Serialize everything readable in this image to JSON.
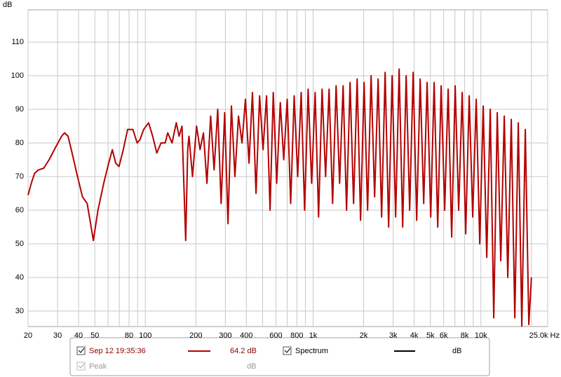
{
  "chart_data": {
    "type": "line",
    "y_label": "dB",
    "xscale": "log",
    "grid": true,
    "xlim": [
      20,
      25000
    ],
    "ylim": [
      25.4,
      119.6
    ],
    "yticks": [
      30,
      40,
      50,
      60,
      70,
      80,
      90,
      100,
      110
    ],
    "xticks": [
      20,
      30,
      40,
      50,
      80,
      100,
      200,
      300,
      400,
      600,
      800,
      {
        "value": 1000,
        "label": "1k"
      },
      {
        "value": 2000,
        "label": "2k"
      },
      {
        "value": 3000,
        "label": "3k"
      },
      {
        "value": 4000,
        "label": "4k"
      },
      {
        "value": 5000,
        "label": "5k"
      },
      {
        "value": 6000,
        "label": "6k"
      },
      {
        "value": 8000,
        "label": "8k"
      },
      {
        "value": 10000,
        "label": "10k"
      },
      {
        "value": 25000,
        "label": "25.0k Hz"
      }
    ],
    "xminorticks": [
      60,
      70,
      90,
      500,
      700,
      900,
      7000,
      9000,
      20000
    ],
    "series": [
      {
        "name": "Sep 12 19:35:36",
        "color": "#b30000",
        "reading": "64.2 dB",
        "checked": true,
        "x": [
          20,
          20.9,
          21.9,
          23.1,
          24.8,
          26.7,
          29.4,
          31.7,
          33,
          34.6,
          36.2,
          39,
          42.2,
          45,
          47.2,
          49,
          52.2,
          56.5,
          60.5,
          63.6,
          66.6,
          69.7,
          73.9,
          78.4,
          84.3,
          89.4,
          93,
          97.7,
          104.6,
          110.6,
          117,
          124,
          131.3,
          136,
          144.2,
          152.9,
          159,
          165.4,
          174,
          179,
          182,
          191,
          202,
          212,
          222,
          233,
          245,
          257,
          270,
          283,
          297,
          311,
          326,
          342,
          359,
          377,
          395,
          415,
          435,
          457,
          480,
          503,
          528,
          554,
          579,
          607,
          637,
          668,
          701,
          735,
          771,
          809,
          849,
          890,
          934,
          980,
          1028,
          1078,
          1131,
          1187,
          1245,
          1306,
          1371,
          1438,
          1509,
          1583,
          1661,
          1743,
          1829,
          1919,
          2013,
          2112,
          2216,
          2325,
          2440,
          2560,
          2686,
          2818,
          2957,
          3103,
          3256,
          3416,
          3585,
          3761,
          3946,
          4141,
          4345,
          4559,
          4783,
          5019,
          5266,
          5526,
          5798,
          6083,
          6383,
          6698,
          7028,
          7374,
          7737,
          8118,
          8518,
          8938,
          9378,
          9840,
          10325,
          10834,
          11368,
          11928,
          12516,
          13132,
          13780,
          14459,
          15171,
          15919,
          16703,
          17526,
          18390,
          19296,
          19990
        ],
        "values": [
          64.5,
          68,
          71,
          72,
          72.5,
          75,
          79,
          82,
          83,
          82,
          78,
          71,
          64,
          62,
          56,
          51,
          60,
          68,
          74,
          78,
          74,
          73,
          78,
          84,
          84,
          80,
          81,
          84,
          86,
          82,
          77,
          80,
          80,
          83,
          80,
          86,
          82,
          85,
          51,
          78,
          82,
          70,
          85,
          78,
          83,
          68,
          88,
          72,
          90,
          62,
          89,
          56,
          91,
          70,
          88,
          80,
          93,
          74,
          95,
          65,
          94,
          78,
          94,
          60,
          95,
          68,
          92,
          75,
          93,
          62,
          94,
          70,
          95,
          60,
          96,
          68,
          95,
          58,
          96,
          70,
          96,
          62,
          97,
          68,
          97,
          60,
          98,
          62,
          99,
          57,
          98,
          60,
          100,
          64,
          99,
          58,
          101,
          55,
          100,
          58,
          102,
          55,
          100,
          60,
          101,
          57,
          99,
          62,
          98,
          58,
          98,
          55,
          97,
          60,
          96,
          52,
          97,
          60,
          95,
          53,
          94,
          58,
          93,
          50,
          91,
          46,
          90,
          28,
          89,
          45,
          88,
          40,
          87,
          28,
          86,
          25.5,
          84,
          26,
          40
        ]
      }
    ],
    "legend_extra": [
      {
        "name": "Spectrum",
        "reading": "dB",
        "checked": true,
        "color": "#000000"
      },
      {
        "name": "Peak",
        "reading": "dB",
        "checked": true
      }
    ]
  }
}
